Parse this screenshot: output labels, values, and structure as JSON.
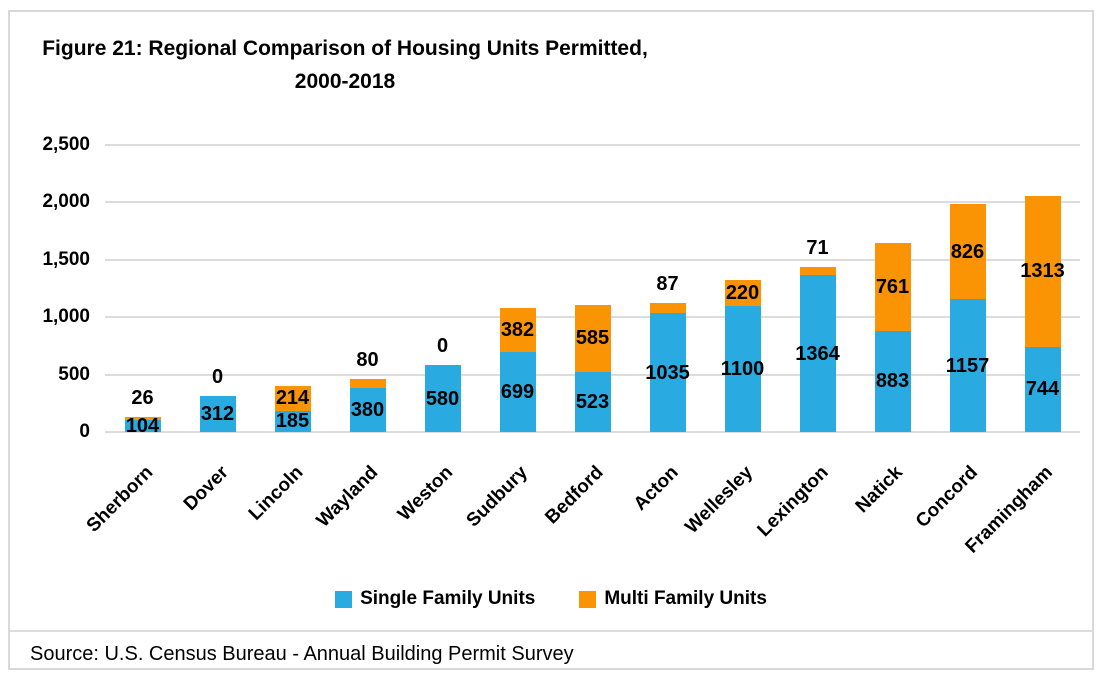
{
  "figure": {
    "title_line1": "Figure 21: Regional Comparison of Housing Units Permitted,",
    "title_line2": "2000-2018",
    "source": "Source: U.S. Census Bureau - Annual Building Permit Survey"
  },
  "chart_data": {
    "type": "bar",
    "stacked": true,
    "title": "Figure 21: Regional Comparison of Housing Units Permitted, 2000-2018",
    "categories": [
      "Sherborn",
      "Dover",
      "Lincoln",
      "Wayland",
      "Weston",
      "Sudbury",
      "Bedford",
      "Acton",
      "Wellesley",
      "Lexington",
      "Natick",
      "Concord",
      "Framingham"
    ],
    "series": [
      {
        "name": "Single Family Units",
        "color": "#29ABE2",
        "values": [
          104,
          312,
          185,
          380,
          580,
          699,
          523,
          1035,
          1100,
          1364,
          883,
          1157,
          744
        ]
      },
      {
        "name": "Multi Family Units",
        "color": "#FA9405",
        "values": [
          26,
          0,
          214,
          80,
          0,
          382,
          585,
          87,
          220,
          71,
          761,
          826,
          1313
        ]
      }
    ],
    "ylim": [
      0,
      2500
    ],
    "y_ticks": [
      "2,500",
      "2,000",
      "1,500",
      "1,000",
      "500",
      "0"
    ],
    "grid": true,
    "data_labels": true,
    "legend_position": "bottom",
    "colors": {
      "grid": "#DCDCDC",
      "frame_border": "#D9D9D9",
      "label_text": "#000000"
    }
  }
}
